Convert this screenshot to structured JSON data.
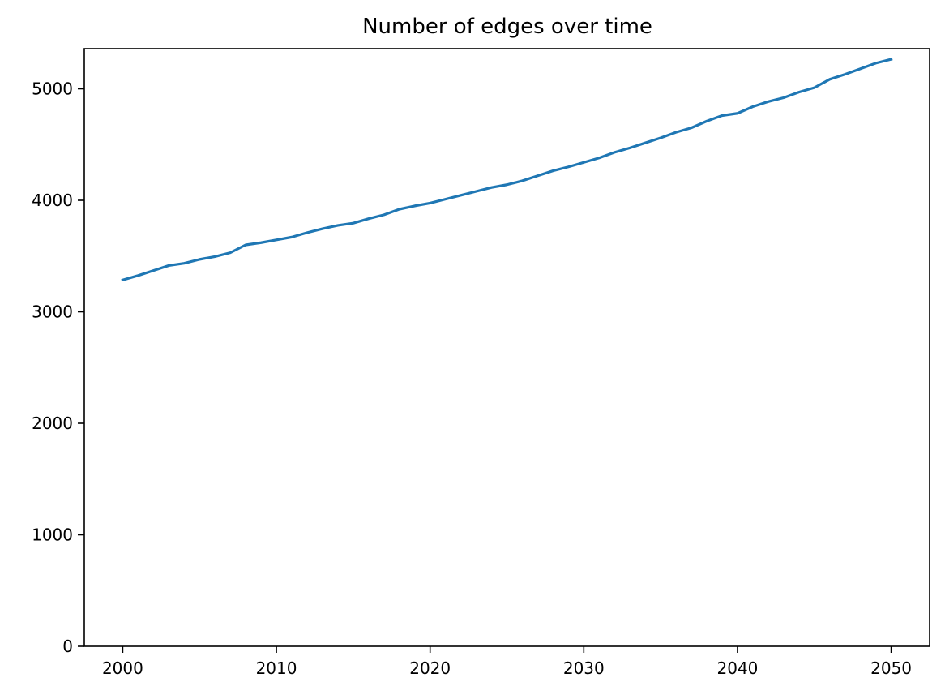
{
  "chart_data": {
    "type": "line",
    "title": "Number of edges over time",
    "xlabel": "",
    "ylabel": "",
    "xlim": [
      1997.5,
      2052.5
    ],
    "ylim": [
      0,
      5360
    ],
    "x_ticks": [
      2000,
      2010,
      2020,
      2030,
      2040,
      2050
    ],
    "x_tick_labels": [
      "2000",
      "2010",
      "2020",
      "2030",
      "2040",
      "2050"
    ],
    "y_ticks": [
      0,
      1000,
      2000,
      3000,
      4000,
      5000
    ],
    "y_tick_labels": [
      "0",
      "1000",
      "2000",
      "3000",
      "4000",
      "5000"
    ],
    "grid": false,
    "legend": "none",
    "series": [
      {
        "color": "#1f77b4",
        "x": [
          2000,
          2001,
          2002,
          2003,
          2004,
          2005,
          2006,
          2007,
          2008,
          2009,
          2010,
          2011,
          2012,
          2013,
          2014,
          2015,
          2016,
          2017,
          2018,
          2019,
          2020,
          2021,
          2022,
          2023,
          2024,
          2025,
          2026,
          2027,
          2028,
          2029,
          2030,
          2031,
          2032,
          2033,
          2034,
          2035,
          2036,
          2037,
          2038,
          2039,
          2040,
          2041,
          2042,
          2043,
          2044,
          2045,
          2046,
          2047,
          2048,
          2049,
          2050
        ],
        "values": [
          3285,
          3325,
          3370,
          3415,
          3435,
          3470,
          3495,
          3530,
          3600,
          3620,
          3645,
          3670,
          3710,
          3745,
          3775,
          3795,
          3835,
          3870,
          3920,
          3950,
          3975,
          4010,
          4045,
          4080,
          4115,
          4140,
          4175,
          4220,
          4265,
          4300,
          4340,
          4380,
          4430,
          4470,
          4515,
          4560,
          4610,
          4650,
          4710,
          4760,
          4780,
          4840,
          4885,
          4920,
          4970,
          5010,
          5085,
          5130,
          5180,
          5230,
          5265
        ]
      }
    ]
  }
}
